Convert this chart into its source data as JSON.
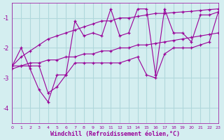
{
  "background_color": "#d4eef0",
  "grid_color": "#b0d8dc",
  "line_color": "#990099",
  "marker_color": "#990099",
  "xlabel": "Windchill (Refroidissement éolien,°C)",
  "xlabel_color": "#990099",
  "xlim": [
    0,
    23
  ],
  "ylim": [
    -4.5,
    -0.5
  ],
  "yticks": [
    -4,
    -3,
    -2,
    -1
  ],
  "xticks": [
    0,
    1,
    2,
    3,
    4,
    5,
    6,
    7,
    8,
    9,
    10,
    11,
    12,
    13,
    14,
    15,
    16,
    17,
    18,
    19,
    20,
    21,
    22,
    23
  ],
  "series": [
    {
      "x": [
        0,
        1,
        2,
        3,
        4,
        5,
        6,
        7,
        8,
        9,
        10,
        11,
        12,
        13,
        14,
        15,
        16,
        17,
        18,
        19,
        20,
        21,
        22,
        23
      ],
      "y": [
        -2.6,
        -2.0,
        -2.7,
        -3.4,
        -3.8,
        -2.9,
        -2.9,
        -1.1,
        -1.6,
        -1.5,
        -1.6,
        -0.7,
        -1.6,
        -1.5,
        -0.7,
        -0.7,
        -2.9,
        -0.7,
        -1.5,
        -1.5,
        -1.8,
        -0.9,
        -0.9,
        -0.8
      ]
    },
    {
      "x": [
        0,
        1,
        2,
        3,
        4,
        5,
        6,
        7,
        8,
        9,
        10,
        11,
        12,
        13,
        14,
        15,
        16,
        17,
        18,
        19,
        20,
        21,
        22,
        23
      ],
      "y": [
        -2.6,
        -2.3,
        -2.1,
        -1.9,
        -1.7,
        -1.6,
        -1.5,
        -1.4,
        -1.3,
        -1.2,
        -1.1,
        -1.1,
        -1.0,
        -1.0,
        -0.95,
        -0.9,
        -0.85,
        -0.85,
        -0.82,
        -0.8,
        -0.78,
        -0.75,
        -0.72,
        -0.7
      ]
    },
    {
      "x": [
        0,
        1,
        2,
        3,
        4,
        5,
        6,
        7,
        8,
        9,
        10,
        11,
        12,
        13,
        14,
        15,
        16,
        17,
        18,
        19,
        20,
        21,
        22,
        23
      ],
      "y": [
        -2.7,
        -2.6,
        -2.5,
        -2.5,
        -2.4,
        -2.4,
        -2.3,
        -2.3,
        -2.2,
        -2.2,
        -2.1,
        -2.1,
        -2.0,
        -2.0,
        -1.9,
        -1.9,
        -1.85,
        -1.8,
        -1.75,
        -1.7,
        -1.65,
        -1.6,
        -1.55,
        -1.5
      ]
    },
    {
      "x": [
        0,
        1,
        2,
        3,
        4,
        5,
        6,
        7,
        8,
        9,
        10,
        11,
        12,
        13,
        14,
        15,
        16,
        17,
        18,
        19,
        20,
        21,
        22,
        23
      ],
      "y": [
        -2.6,
        -2.6,
        -2.6,
        -2.6,
        -3.5,
        -3.3,
        -2.9,
        -2.5,
        -2.5,
        -2.5,
        -2.5,
        -2.5,
        -2.5,
        -2.4,
        -2.3,
        -2.9,
        -3.0,
        -2.2,
        -2.0,
        -2.0,
        -2.0,
        -1.9,
        -1.8,
        -0.8
      ]
    }
  ]
}
